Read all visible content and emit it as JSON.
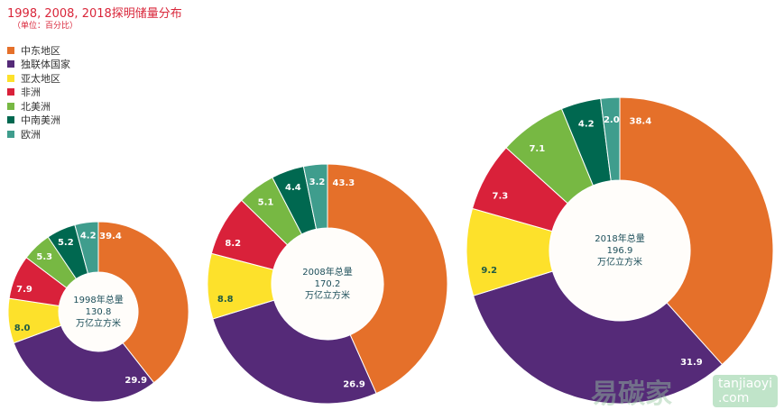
{
  "chart_data": {
    "type": "pie",
    "title": "1998, 2008, 2018探明储量分布",
    "subtitle": "（单位：百分比）",
    "categories": [
      "中东地区",
      "独联体国家",
      "亚太地区",
      "非洲",
      "北美洲",
      "中南美洲",
      "欧洲"
    ],
    "colors": [
      "#e5702a",
      "#552a78",
      "#fde12b",
      "#d9213a",
      "#77b843",
      "#006850",
      "#3f9d8d"
    ],
    "legend_placement": "top-left",
    "charts": [
      {
        "year": "1998",
        "center_label": "1998年总量",
        "total": "130.8",
        "unit": "万亿立方米",
        "values": [
          39.4,
          29.9,
          8.0,
          7.9,
          5.3,
          5.2,
          4.2
        ]
      },
      {
        "year": "2008",
        "center_label": "2008年总量",
        "total": "170.2",
        "unit": "万亿立方米",
        "values": [
          43.3,
          26.9,
          8.8,
          8.2,
          5.1,
          4.4,
          3.2
        ]
      },
      {
        "year": "2018",
        "center_label": "2018年总量",
        "total": "196.9",
        "unit": "万亿立方米",
        "values": [
          38.4,
          31.9,
          9.2,
          7.3,
          7.1,
          4.2,
          2.0
        ]
      }
    ]
  },
  "watermark": {
    "logo": "易碳家",
    "site": "tanjiaoyi.com"
  }
}
